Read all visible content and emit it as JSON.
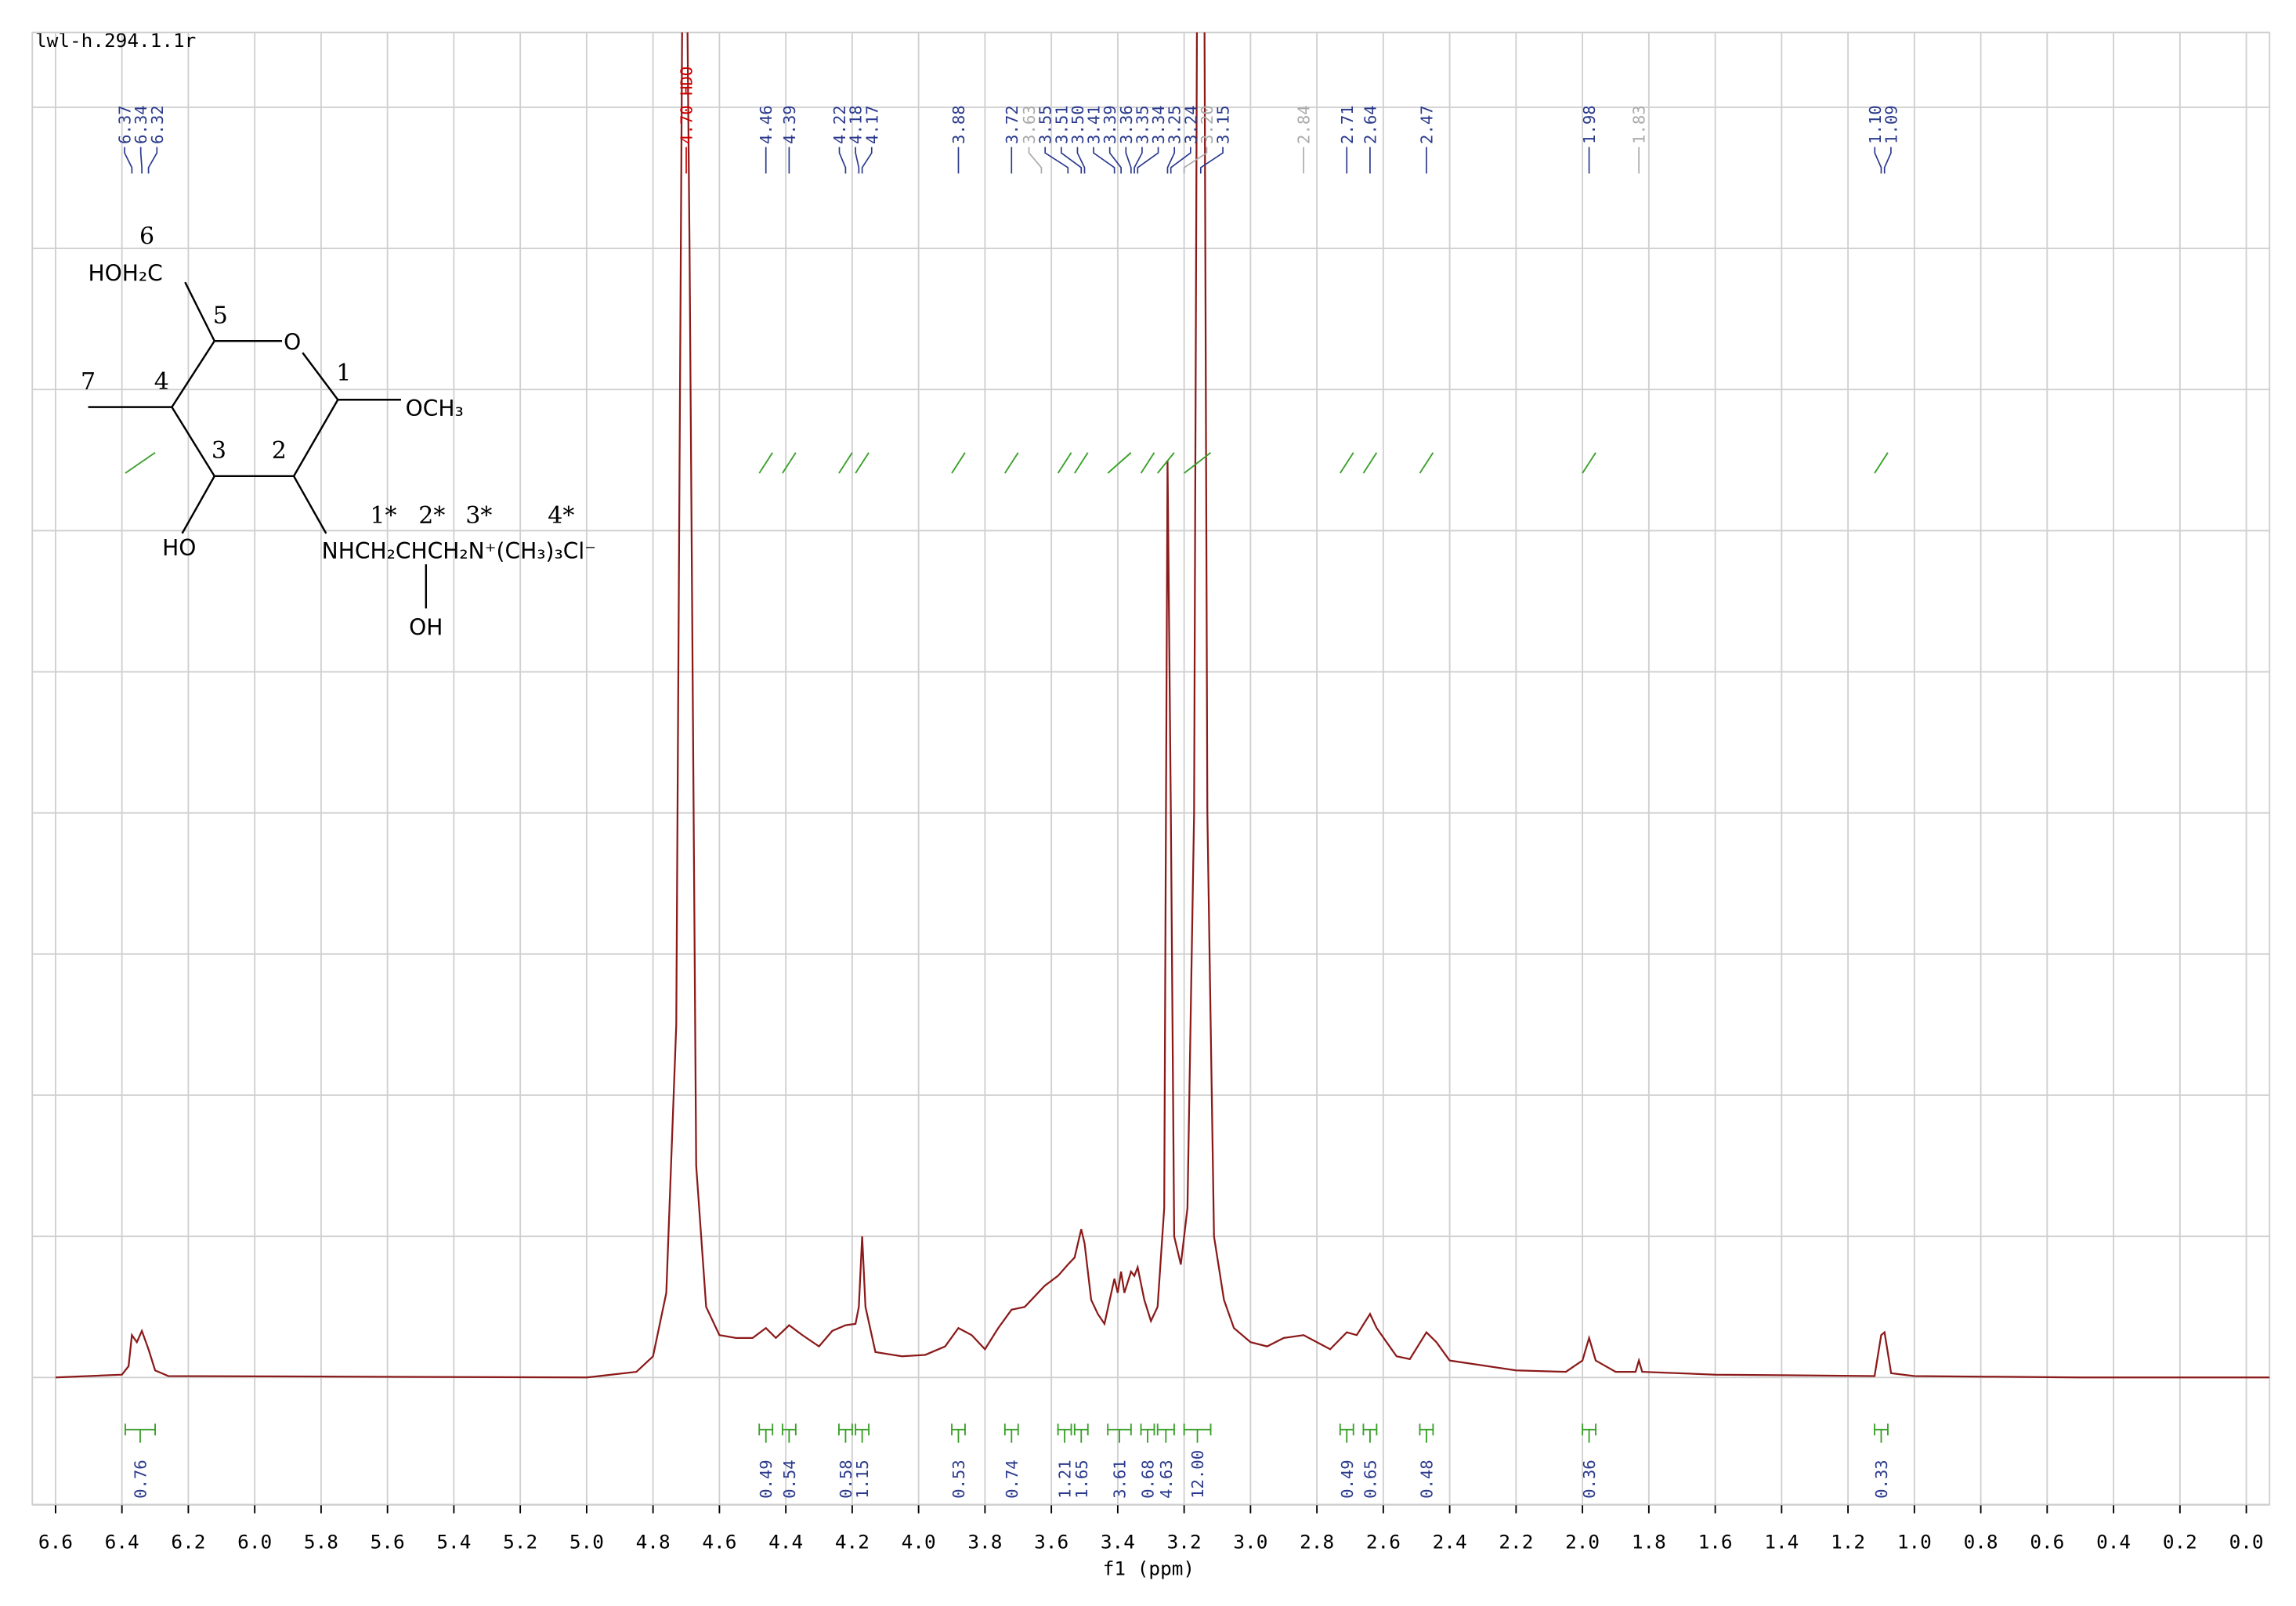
{
  "chart_data": {
    "type": "nmr",
    "title": "lwl-h.294.1.1r",
    "x_label": "f1 (ppm)",
    "xlim": [
      6.67,
      -0.07
    ],
    "ylim": [
      -0.9,
      9.53
    ],
    "xticks": [
      {
        "value": 6.6,
        "label": "6.6"
      },
      6.4,
      6.2,
      {
        "value": 6,
        "label": "6.0"
      },
      5.8,
      5.6,
      5.4,
      5.2,
      {
        "value": 5,
        "label": "5.0"
      },
      4.8,
      4.6,
      4.4,
      4.2,
      {
        "value": 4,
        "label": "4.0"
      },
      3.8,
      3.6,
      3.4,
      3.2,
      {
        "value": 3,
        "label": "3.0"
      },
      2.8,
      2.6,
      2.4,
      2.2,
      {
        "value": 2,
        "label": "2.0"
      },
      1.8,
      1.6,
      1.4,
      1.2,
      {
        "value": 1,
        "label": "1.0"
      },
      0.8,
      0.6,
      0.4,
      0.2,
      {
        "value": 0,
        "label": "0.0"
      }
    ],
    "ygrid": [
      0,
      1,
      2,
      3,
      4,
      5,
      6,
      7,
      8,
      9
    ],
    "grid": true,
    "color": "#8b1a1a",
    "peak_color": "#2b3a8c",
    "integral_color": "#3aa02a",
    "x": [
      6.6,
      6.4,
      6.38,
      6.37,
      6.355,
      6.34,
      6.32,
      6.3,
      6.26,
      5.0,
      4.85,
      4.8,
      4.76,
      4.73,
      4.71,
      4.7,
      4.69,
      4.67,
      4.64,
      4.6,
      4.55,
      4.5,
      4.46,
      4.43,
      4.39,
      4.35,
      4.3,
      4.26,
      4.22,
      4.19,
      4.18,
      4.17,
      4.16,
      4.13,
      4.05,
      3.98,
      3.92,
      3.88,
      3.84,
      3.8,
      3.76,
      3.72,
      3.68,
      3.64,
      3.62,
      3.58,
      3.55,
      3.53,
      3.51,
      3.5,
      3.48,
      3.46,
      3.44,
      3.41,
      3.4,
      3.39,
      3.38,
      3.36,
      3.35,
      3.34,
      3.32,
      3.3,
      3.28,
      3.26,
      3.25,
      3.24,
      3.23,
      3.21,
      3.19,
      3.17,
      3.16,
      3.14,
      3.13,
      3.11,
      3.08,
      3.05,
      3.0,
      2.95,
      2.9,
      2.84,
      2.8,
      2.76,
      2.71,
      2.68,
      2.64,
      2.62,
      2.56,
      2.52,
      2.47,
      2.44,
      2.4,
      2.2,
      2.05,
      2.0,
      1.98,
      1.96,
      1.9,
      1.84,
      1.83,
      1.82,
      1.6,
      1.12,
      1.1,
      1.09,
      1.07,
      1.0,
      0.5,
      -0.07
    ],
    "values": [
      0,
      0.02,
      0.08,
      0.3,
      0.25,
      0.33,
      0.2,
      0.05,
      0.01,
      0,
      0.04,
      0.15,
      0.6,
      2.5,
      10.5,
      10.5,
      8,
      1.5,
      0.5,
      0.3,
      0.28,
      0.28,
      0.35,
      0.28,
      0.37,
      0.3,
      0.22,
      0.33,
      0.37,
      0.38,
      0.5,
      1.0,
      0.5,
      0.18,
      0.15,
      0.16,
      0.22,
      0.35,
      0.3,
      0.2,
      0.35,
      0.48,
      0.5,
      0.6,
      0.65,
      0.72,
      0.8,
      0.85,
      1.05,
      0.95,
      0.55,
      0.45,
      0.38,
      0.7,
      0.6,
      0.75,
      0.6,
      0.75,
      0.72,
      0.78,
      0.55,
      0.4,
      0.5,
      1.2,
      6.5,
      4.0,
      1.0,
      0.8,
      1.2,
      4.0,
      10.5,
      10.5,
      4,
      1.0,
      0.55,
      0.35,
      0.25,
      0.22,
      0.28,
      0.3,
      0.25,
      0.2,
      0.32,
      0.3,
      0.45,
      0.35,
      0.15,
      0.13,
      0.32,
      0.25,
      0.12,
      0.05,
      0.04,
      0.12,
      0.28,
      0.12,
      0.04,
      0.04,
      0.12,
      0.04,
      0.02,
      0.01,
      0.3,
      0.32,
      0.03,
      0.01,
      0,
      0
    ],
    "peaks": [
      6.37,
      6.34,
      6.32,
      {
        "value": 4.7,
        "label": "4.70 HDO",
        "color": "#cc0000"
      },
      4.46,
      4.39,
      4.22,
      4.18,
      4.17,
      3.88,
      3.72,
      {
        "value": 3.63,
        "color": "#aaaaaa"
      },
      3.55,
      3.51,
      {
        "value": 3.5,
        "label": "3.50"
      },
      3.41,
      3.39,
      3.36,
      3.35,
      3.34,
      3.25,
      3.24,
      {
        "value": 3.2,
        "label": "3.20",
        "color": "#aaaaaa"
      },
      3.15,
      {
        "value": 2.84,
        "color": "#aaaaaa"
      },
      2.71,
      2.64,
      2.47,
      1.98,
      {
        "value": 1.83,
        "color": "#aaaaaa"
      },
      {
        "value": 1.1,
        "label": "1.10"
      },
      1.09
    ],
    "integrals": [
      {
        "from": 6.39,
        "to": 6.3,
        "value": 0.76
      },
      {
        "from": 4.48,
        "to": 4.44,
        "value": 0.49
      },
      {
        "from": 4.41,
        "to": 4.37,
        "value": 0.54
      },
      {
        "from": 4.24,
        "to": 4.2,
        "value": 0.58
      },
      {
        "from": 4.19,
        "to": 4.15,
        "value": 1.15
      },
      {
        "from": 3.9,
        "to": 3.86,
        "value": 0.53
      },
      {
        "from": 3.74,
        "to": 3.7,
        "value": 0.74
      },
      {
        "from": 3.58,
        "to": 3.54,
        "value": 1.21
      },
      {
        "from": 3.53,
        "to": 3.49,
        "value": 1.65
      },
      {
        "from": 3.43,
        "to": 3.36,
        "value": 3.61
      },
      {
        "from": 3.33,
        "to": 3.29,
        "value": 0.68
      },
      {
        "from": 3.28,
        "to": 3.23,
        "value": 4.63
      },
      {
        "from": 3.2,
        "to": 3.12,
        "value": 12,
        "label": "12.00"
      },
      {
        "from": 2.73,
        "to": 2.69,
        "value": 0.49
      },
      {
        "from": 2.66,
        "to": 2.62,
        "value": 0.65
      },
      {
        "from": 2.49,
        "to": 2.45,
        "value": 0.48
      },
      {
        "from": 2.0,
        "to": 1.96,
        "value": 0.36
      },
      {
        "from": 1.12,
        "to": 1.08,
        "value": 0.33
      }
    ],
    "annotations": [
      "6",
      "HOH₂C",
      "5",
      "O",
      "1",
      "OCH₃",
      "7",
      "4",
      "3",
      "2",
      "HO",
      "1*",
      "2*",
      "3*",
      "4*",
      "NHCH₂CHCH₂N⁺(CH₃)₃Cl⁻",
      "OH"
    ]
  }
}
